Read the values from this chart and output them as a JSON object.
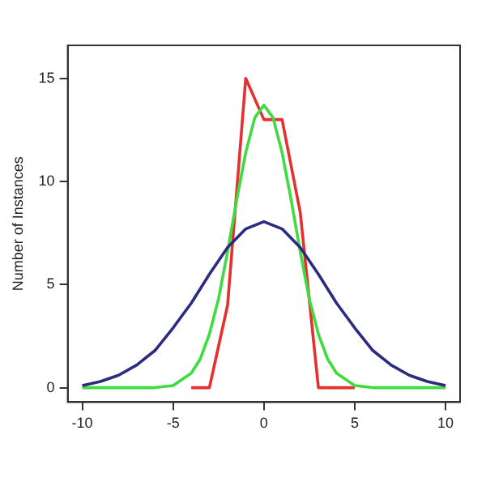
{
  "chart_data": {
    "type": "line",
    "ylabel": "Number of Instances",
    "xlim": [
      -10.8,
      10.8
    ],
    "ylim": [
      -0.7,
      16.6
    ],
    "xticks": [
      -10,
      -5,
      0,
      5,
      10
    ],
    "yticks": [
      0,
      5,
      10,
      15
    ],
    "grid": false,
    "legend": false,
    "marker": "none",
    "series": [
      {
        "color": "#2b2b80",
        "x": [
          -10,
          -9,
          -8,
          -7,
          -6,
          -5,
          -4,
          -3,
          -2,
          -1,
          0,
          1,
          2,
          3,
          4,
          5,
          6,
          7,
          8,
          9,
          10
        ],
        "values": [
          0.1,
          0.3,
          0.6,
          1.1,
          1.8,
          2.9,
          4.1,
          5.5,
          6.8,
          7.7,
          8.05,
          7.7,
          6.8,
          5.5,
          4.1,
          2.9,
          1.8,
          1.1,
          0.6,
          0.3,
          0.1
        ]
      },
      {
        "color": "#3fdc3f",
        "x": [
          -10,
          -6,
          -5,
          -4,
          -3.5,
          -3,
          -2.5,
          -2,
          -1.5,
          -1,
          -0.5,
          0,
          0.5,
          1,
          1.5,
          2,
          2.5,
          3,
          3.5,
          4,
          5,
          6,
          10
        ],
        "values": [
          0,
          0,
          0.1,
          0.7,
          1.4,
          2.6,
          4.3,
          6.6,
          9.1,
          11.4,
          13.1,
          13.7,
          13.1,
          11.4,
          9.1,
          6.6,
          4.3,
          2.6,
          1.4,
          0.7,
          0.1,
          0,
          0
        ]
      },
      {
        "color": "#e53030",
        "x": [
          -4,
          -3,
          -2,
          -1,
          0,
          1,
          2,
          3,
          5
        ],
        "values": [
          0,
          0,
          4,
          15,
          13,
          13,
          8.5,
          0,
          0
        ]
      }
    ]
  }
}
